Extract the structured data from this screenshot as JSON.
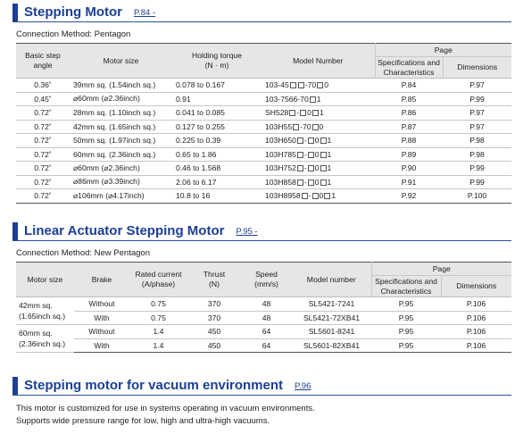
{
  "section1": {
    "title": "Stepping Motor",
    "page_ref": "P.84 -",
    "connection": "Connection Method: Pentagon",
    "headers": {
      "basic_step_angle": "Basic step angle",
      "motor_size": "Motor size",
      "holding_torque": "Holding torque",
      "holding_torque_unit": "(N · m)",
      "model_number": "Model Number",
      "page": "Page",
      "spec_char": "Specifications and Characteristics",
      "dimensions": "Dimensions"
    },
    "rows": [
      {
        "angle": "0.36˚",
        "size": "39mm sq. (1.54inch sq.)",
        "torque": "0.078 to 0.167",
        "model": [
          "103-45",
          "-70",
          "0"
        ],
        "model_boxes": [
          2,
          1
        ],
        "spec": "P.84",
        "dim": "P.97"
      },
      {
        "angle": "0.45˚",
        "size": "⌀60mm (⌀2.36inch)",
        "torque": "0.91",
        "model": [
          "103-7566-70",
          "1"
        ],
        "model_boxes": [
          1
        ],
        "spec": "P.85",
        "dim": "P.99"
      },
      {
        "angle": "0.72˚",
        "size": "28mm sq. (1.10inch sq.)",
        "torque": "0.041 to 0.085",
        "model": [
          "SH528",
          "-",
          "0",
          "1"
        ],
        "model_boxes": [
          1,
          1,
          1
        ],
        "spec": "P.86",
        "dim": "P.97"
      },
      {
        "angle": "0.72˚",
        "size": "42mm sq. (1.65inch sq.)",
        "torque": "0.127 to 0.255",
        "model": [
          "103H55",
          "-70",
          "0"
        ],
        "model_boxes": [
          1,
          1
        ],
        "spec": "P.87",
        "dim": "P.97"
      },
      {
        "angle": "0.72˚",
        "size": "50mm sq. (1.97inch sq.)",
        "torque": "0.225 to 0.39",
        "model": [
          "103H650",
          "-",
          "0",
          "1"
        ],
        "model_boxes": [
          1,
          1,
          1
        ],
        "spec": "P.88",
        "dim": "P.98"
      },
      {
        "angle": "0.72˚",
        "size": "60mm sq. (2.36inch sq.)",
        "torque": "0.65 to 1.86",
        "model": [
          "103H785",
          "-",
          "0",
          "1"
        ],
        "model_boxes": [
          1,
          1,
          1
        ],
        "spec": "P.89",
        "dim": "P.98"
      },
      {
        "angle": "0.72˚",
        "size": "⌀60mm (⌀2.36inch)",
        "torque": "0.46 to 1.568",
        "model": [
          "103H752",
          "-",
          "0",
          "1"
        ],
        "model_boxes": [
          1,
          1,
          1
        ],
        "spec": "P.90",
        "dim": "P.99"
      },
      {
        "angle": "0.72˚",
        "size": "⌀86mm (⌀3.39inch)",
        "torque": "2.06 to 6.17",
        "model": [
          "103H858",
          "-",
          "0",
          "1"
        ],
        "model_boxes": [
          1,
          1,
          1
        ],
        "spec": "P.91",
        "dim": "P.99"
      },
      {
        "angle": "0.72˚",
        "size": "⌀106mm (⌀4.17inch)",
        "torque": "10.8 to 16",
        "model": [
          "103H8958",
          "-",
          "0",
          "1"
        ],
        "model_boxes": [
          1,
          1,
          1
        ],
        "spec": "P.92",
        "dim": "P.100"
      }
    ]
  },
  "section2": {
    "title": "Linear Actuator Stepping Motor",
    "page_ref": "P.95 -",
    "connection": "Connection Method: New Pentagon",
    "headers": {
      "motor_size": "Motor size",
      "brake": "Brake",
      "rated_current": "Rated current",
      "rated_current_unit": "(A/phase)",
      "thrust": "Thrust",
      "thrust_unit": "(N)",
      "speed": "Speed",
      "speed_unit": "(mm/s)",
      "model_number": "Model number",
      "page": "Page",
      "spec_char": "Specifications and Characteristics",
      "dimensions": "Dimensions"
    },
    "groups": [
      {
        "size_line1": "42mm sq.",
        "size_line2": "(1.65inch sq.)",
        "rows": [
          {
            "brake": "Without",
            "current": "0.75",
            "thrust": "370",
            "speed": "48",
            "model": "SL5421-7241",
            "spec": "P.95",
            "dim": "P.106"
          },
          {
            "brake": "With",
            "current": "0.75",
            "thrust": "370",
            "speed": "48",
            "model": "SL5421-72XB41",
            "spec": "P.95",
            "dim": "P.106"
          }
        ]
      },
      {
        "size_line1": "60mm sq.",
        "size_line2": "(2.36inch sq.)",
        "rows": [
          {
            "brake": "Without",
            "current": "1.4",
            "thrust": "450",
            "speed": "64",
            "model": "SL5601-8241",
            "spec": "P.95",
            "dim": "P.106"
          },
          {
            "brake": "With",
            "current": "1.4",
            "thrust": "450",
            "speed": "64",
            "model": "SL5601-82XB41",
            "spec": "P.95",
            "dim": "P.106"
          }
        ]
      }
    ]
  },
  "section3": {
    "title": "Stepping motor for vacuum environment",
    "page_ref": "P.96",
    "line1": "This motor is customized for use in systems operating in vacuum environments.",
    "line2": "Supports wide pressure range for low, high and ultra-high vacuums."
  }
}
